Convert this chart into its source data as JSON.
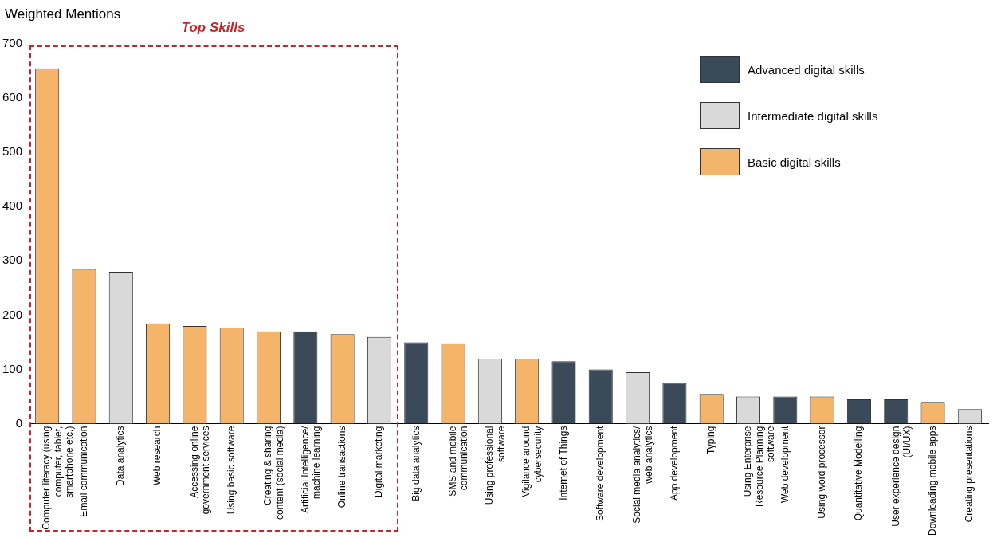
{
  "chart_data": {
    "type": "bar",
    "ylabel": "Weighted Mentions",
    "annotations": [
      "Top Skills"
    ],
    "categories": [
      "Computer literacy (using computer, tablet, smartphone etc.)",
      "Email communication",
      "Data analytics",
      "Web research",
      "Accessing online government services",
      "Using basic software",
      "Creating & sharing content (social media)",
      "Artificial Intelligence/ machine learning",
      "Online transactions",
      "Digital marketing",
      "Big data analytics",
      "SMS and mobile communication",
      "Using professional software",
      "Vigilance around cybersecurity",
      "Internet of Things",
      "Software development",
      "Social media analytics/ web analytics",
      "App development",
      "Typing",
      "Using Enterprise Resource Planning software",
      "Web development",
      "Using word processor",
      "Quantitative Modelling",
      "User experience design (UI/UX)",
      "Downloading mobile apps",
      "Creating presentations"
    ],
    "series": [
      {
        "name": "Advanced digital skills",
        "color": "#3a4a58",
        "values": [
          null,
          null,
          null,
          null,
          null,
          null,
          null,
          170,
          null,
          null,
          150,
          null,
          null,
          null,
          115,
          100,
          null,
          75,
          null,
          null,
          50,
          null,
          45,
          45,
          null,
          null
        ]
      },
      {
        "name": "Intermediate digital skills",
        "color": "#d9d9d9",
        "values": [
          null,
          null,
          280,
          null,
          null,
          null,
          null,
          null,
          null,
          160,
          null,
          null,
          120,
          null,
          null,
          null,
          95,
          null,
          null,
          50,
          null,
          null,
          null,
          null,
          null,
          27
        ]
      },
      {
        "name": "Basic digital skills",
        "color": "#f4b46a",
        "values": [
          655,
          285,
          null,
          185,
          180,
          177,
          170,
          null,
          165,
          null,
          null,
          148,
          null,
          120,
          null,
          null,
          null,
          null,
          55,
          null,
          null,
          50,
          null,
          null,
          40,
          null
        ]
      }
    ],
    "ylim": [
      0,
      700
    ],
    "yticks": [
      0,
      100,
      200,
      300,
      400,
      500,
      600,
      700
    ],
    "grid": false,
    "legend": "top right"
  }
}
